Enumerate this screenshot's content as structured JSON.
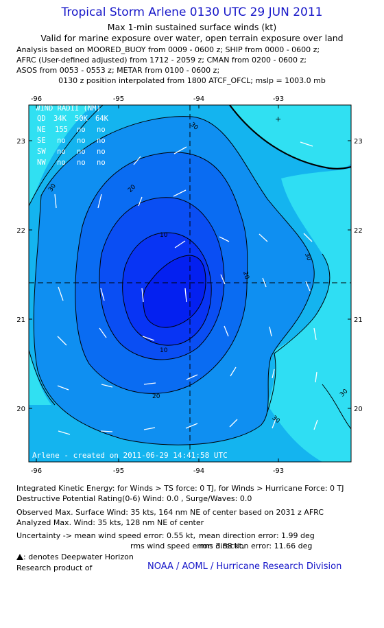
{
  "header": {
    "title": "Tropical Storm Arlene 0130 UTC 29 JUN 2011",
    "subtitle1": "Max 1-min sustained surface winds (kt)",
    "subtitle2": "Valid for marine exposure over water, open terrain exposure over land",
    "analysis_lines": [
      "Analysis based on MOORED_BUOY from 0009 - 0600 z; SHIP from 0000 - 0600 z;",
      "AFRC (User-defined adjusted) from 1712 - 2059 z; CMAN from 0200 - 0600 z;",
      "ASOS from 0053 - 0553 z; METAR from 0100 - 0600 z;"
    ],
    "position_note": "0130 z position interpolated from 1800 ATCF_OFCL; mslp = 1003.0 mb"
  },
  "map": {
    "lon_labels": [
      "-96",
      "-95",
      "-94",
      "-93"
    ],
    "lat_labels": [
      "23",
      "22",
      "21",
      "20"
    ],
    "contour_labels": [
      "30",
      "30",
      "30",
      "30",
      "30",
      "20",
      "20",
      "20",
      "10",
      "10"
    ],
    "center_marker": "+",
    "colors": {
      "ring_30": "#14b4ef",
      "ring_20_30": "#0f8ff1",
      "ring_10_20": "#0a5ef2",
      "ring_0_10": "#0834f4",
      "ring_inner": "#0420f0",
      "outer_light": "#30e0f2",
      "contour": "#000000",
      "arrow": "#ffffff"
    },
    "wind_radii": {
      "title": "WIND RADII (NM)",
      "header": [
        "QD",
        "34K",
        "50K",
        "64K"
      ],
      "rows": [
        [
          "NE",
          "155",
          "no",
          "no"
        ],
        [
          "SE",
          "no",
          "no",
          "no"
        ],
        [
          "SW",
          "no",
          "no",
          "no"
        ],
        [
          "NW",
          "no",
          "no",
          "no"
        ]
      ]
    },
    "footer_label": "Arlene - created on 2011-06-29 14:41:58 UTC"
  },
  "footer": {
    "ike": "Integrated Kinetic Energy:  for Winds > TS force: 0 TJ,  for Winds > Hurricane Force: 0 TJ",
    "dpr": "Destructive Potential Rating(0-6)   Wind: 0.0 , Surge/Waves: 0.0",
    "observed": "Observed Max. Surface Wind: 35 kts, 164 nm NE of center based on 2031 z AFRC",
    "analyzed": "Analyzed Max. Wind: 35 kts, 128 nm NE of center",
    "uncertainty_a": "Uncertainty -> mean wind speed error: 0.55 kt,",
    "uncertainty_b": "mean direction error: 1.99 deg",
    "uncertainty_c": "rms wind speed error: 3.88 kt,",
    "uncertainty_d": "rms direction error: 11.66 deg",
    "deepwater": ": denotes Deepwater Horizon",
    "research": "Research product of",
    "org": "NOAA / AOML / Hurricane Research Division"
  }
}
